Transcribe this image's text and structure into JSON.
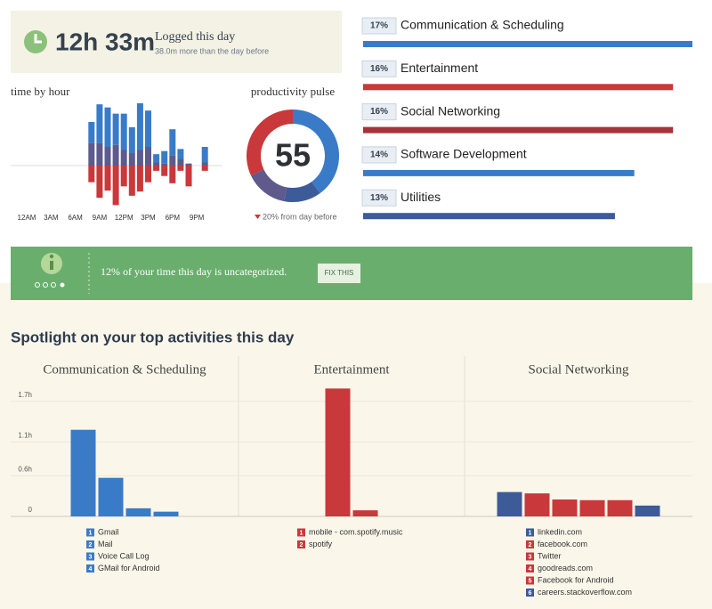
{
  "summary": {
    "total": "12h 33m",
    "title": "Logged this day",
    "subtitle": "38.0m more than the day before"
  },
  "banner": {
    "text": "12% of your time this day is uncategorized.",
    "button": "FIX THIS"
  },
  "spotlight_title": "Spotlight on your top activities this day",
  "chart_data": [
    {
      "type": "stacked-bar",
      "title": "time by hour",
      "categories": [
        "12AM",
        null,
        null,
        "3AM",
        null,
        null,
        "6AM",
        null,
        null,
        "9AM",
        null,
        null,
        "12PM",
        null,
        null,
        "3PM",
        null,
        null,
        "6PM",
        null,
        null,
        "9PM",
        null,
        null
      ],
      "series": [
        {
          "color": "#5e5a8c",
          "values": [
            0,
            0,
            0,
            0,
            0,
            0,
            0,
            0,
            22,
            22,
            18,
            20,
            15,
            12,
            15,
            18,
            3,
            2,
            10,
            6,
            2,
            0,
            3,
            0
          ]
        },
        {
          "color": "#3a7bc8",
          "values": [
            0,
            0,
            0,
            0,
            0,
            0,
            0,
            0,
            20,
            37,
            38,
            30,
            35,
            25,
            45,
            35,
            8,
            12,
            25,
            10,
            0,
            0,
            15,
            0
          ]
        },
        {
          "color": "#c9383a",
          "values": [
            0,
            0,
            0,
            0,
            0,
            0,
            0,
            0,
            -16,
            -31,
            -24,
            -38,
            -20,
            -29,
            -25,
            -16,
            -5,
            -10,
            -17,
            -5,
            -20,
            0,
            -5,
            0
          ]
        }
      ],
      "ylim": [
        -60,
        60
      ]
    },
    {
      "type": "donut",
      "title": "productivity pulse",
      "score": 55,
      "note": "20% from day before",
      "values": [
        40,
        13,
        15,
        32
      ],
      "colors": [
        "#3a7bc8",
        "#3d5a99",
        "#5e5a8c",
        "#c9383a"
      ]
    },
    {
      "type": "horizontal-bar",
      "categories": [
        "Communication & Scheduling",
        "Entertainment",
        "Social Networking",
        "Software Development",
        "Utilities"
      ],
      "values": [
        17,
        16,
        16,
        14,
        13
      ],
      "value_labels": [
        "17%",
        "16%",
        "16%",
        "14%",
        "13%"
      ],
      "colors": [
        "#3a7bc8",
        "#c9383a",
        "#a8323a",
        "#3a7bc8",
        "#3d5a99"
      ],
      "xlim": [
        0,
        17
      ]
    },
    {
      "type": "bar",
      "title": "Communication & Scheduling",
      "categories": [
        "Gmail",
        "Mail",
        "Voice Call Log",
        "GMail for Android"
      ],
      "ranks": [
        1,
        2,
        3,
        4
      ],
      "values": [
        1.28,
        0.57,
        0.12,
        0.07
      ],
      "colors": [
        "#3a7bc8",
        "#3a7bc8",
        "#3a7bc8",
        "#3a7bc8"
      ],
      "ylim": [
        0,
        2
      ],
      "yticks": [
        0,
        {
          "value": 0.6,
          "label": "0.6h"
        },
        {
          "value": 1.1,
          "label": "1.1h"
        },
        {
          "value": 1.7,
          "label": "1.7h"
        }
      ]
    },
    {
      "type": "bar",
      "title": "Entertainment",
      "categories": [
        "mobile - com.spotify.music",
        "spotify"
      ],
      "ranks": [
        1,
        2
      ],
      "values": [
        1.89,
        0.09
      ],
      "colors": [
        "#c9383a",
        "#c9383a"
      ],
      "ylim": [
        0,
        2
      ]
    },
    {
      "type": "bar",
      "title": "Social Networking",
      "categories": [
        "linkedin.com",
        "facebook.com",
        "Twitter",
        "goodreads.com",
        "Facebook for Android",
        "careers.stackoverflow.com"
      ],
      "ranks": [
        1,
        2,
        3,
        4,
        5,
        6
      ],
      "values": [
        0.36,
        0.34,
        0.25,
        0.24,
        0.24,
        0.16
      ],
      "colors": [
        "#3d5a99",
        "#c9383a",
        "#c9383a",
        "#c9383a",
        "#c9383a",
        "#3d5a99"
      ],
      "ylim": [
        0,
        2
      ]
    }
  ]
}
